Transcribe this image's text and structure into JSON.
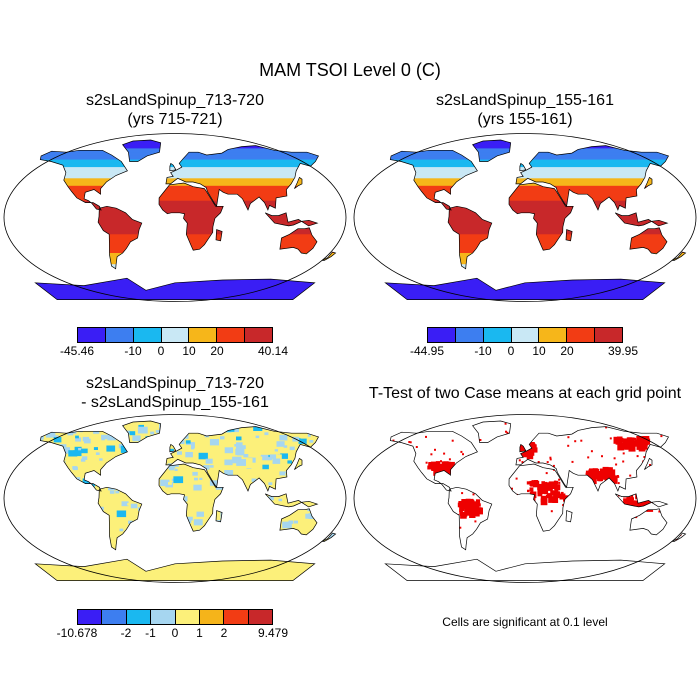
{
  "title": "MAM TSOI Level 0 (C)",
  "panels": [
    {
      "title_line1": "s2sLandSpinup_713-720",
      "title_line2": "(yrs 715-721)",
      "colorbar": {
        "labels": [
          "-45.46",
          "-10",
          "0",
          "10",
          "20",
          "40.14"
        ],
        "colors": [
          "#3a1ef5",
          "#3d7ef0",
          "#1ab8f0",
          "#c9e8f5",
          "#f6b61a",
          "#f23c14",
          "#c8282a"
        ]
      }
    },
    {
      "title_line1": "s2sLandSpinup_155-161",
      "title_line2": "(yrs 155-161)",
      "colorbar": {
        "labels": [
          "-44.95",
          "-10",
          "0",
          "10",
          "20",
          "39.95"
        ],
        "colors": [
          "#3a1ef5",
          "#3d7ef0",
          "#1ab8f0",
          "#c9e8f5",
          "#f6b61a",
          "#f23c14",
          "#c8282a"
        ]
      }
    },
    {
      "title_line1": "s2sLandSpinup_713-720",
      "title_line2": "- s2sLandSpinup_155-161",
      "colorbar": {
        "labels": [
          "-10.678",
          "-2",
          "-1",
          "0",
          "1",
          "2",
          "9.479"
        ],
        "colors": [
          "#3a1ef5",
          "#3d7ef0",
          "#1ab8f0",
          "#a6d6f0",
          "#fcf07a",
          "#f5b41a",
          "#f23c14",
          "#c8282a"
        ]
      }
    },
    {
      "title_line1": "T-Test of two Case means at each grid point",
      "note": "Cells are significant at 0.1 level",
      "color": "#ee0000"
    }
  ]
}
